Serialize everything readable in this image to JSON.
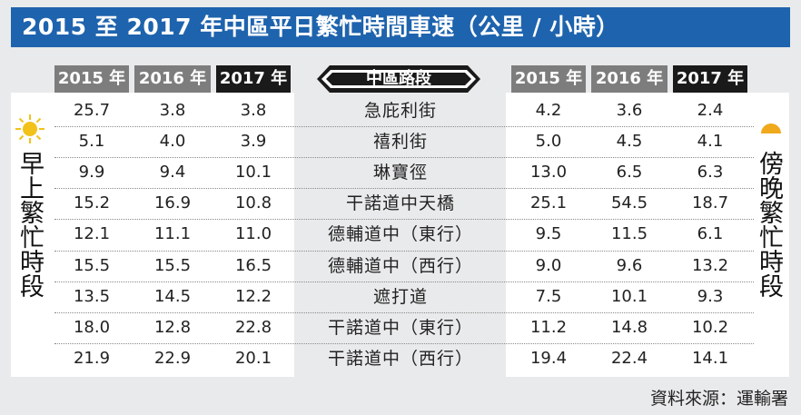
{
  "title": "2015 至 2017 年中區平日繁忙時間車速（公里 / 小時）",
  "source": "資料來源：運輸署",
  "morning_label": "早上繁忙時段",
  "evening_label": "傍晚繁忙時段",
  "chart_data": {
    "type": "table",
    "title": "2015 至 2017 年中區平日繁忙時間車速（公里 / 小時）",
    "road_header": "中區路段",
    "year_headers": [
      "2015 年",
      "2016 年",
      "2017 年"
    ],
    "groups": [
      "早上繁忙時段",
      "傍晚繁忙時段"
    ],
    "rows": [
      {
        "road": "急庇利街",
        "morning": [
          "25.7",
          "3.8",
          "3.8"
        ],
        "evening": [
          "4.2",
          "3.6",
          "2.4"
        ]
      },
      {
        "road": "禧利街",
        "morning": [
          "5.1",
          "4.0",
          "3.9"
        ],
        "evening": [
          "5.0",
          "4.5",
          "4.1"
        ]
      },
      {
        "road": "琳寶徑",
        "morning": [
          "9.9",
          "9.4",
          "10.1"
        ],
        "evening": [
          "13.0",
          "6.5",
          "6.3"
        ]
      },
      {
        "road": "干諾道中天橋",
        "morning": [
          "15.2",
          "16.9",
          "10.8"
        ],
        "evening": [
          "25.1",
          "54.5",
          "18.7"
        ]
      },
      {
        "road": "德輔道中（東行）",
        "morning": [
          "12.1",
          "11.1",
          "11.0"
        ],
        "evening": [
          "9.5",
          "11.5",
          "6.1"
        ]
      },
      {
        "road": "德輔道中（西行）",
        "morning": [
          "15.5",
          "15.5",
          "16.5"
        ],
        "evening": [
          "9.0",
          "9.6",
          "13.2"
        ]
      },
      {
        "road": "遮打道",
        "morning": [
          "13.5",
          "14.5",
          "12.2"
        ],
        "evening": [
          "7.5",
          "10.1",
          "9.3"
        ]
      },
      {
        "road": "干諾道中（東行）",
        "morning": [
          "18.0",
          "12.8",
          "22.8"
        ],
        "evening": [
          "11.2",
          "14.8",
          "10.2"
        ]
      },
      {
        "road": "干諾道中（西行）",
        "morning": [
          "21.9",
          "22.9",
          "20.1"
        ],
        "evening": [
          "19.4",
          "22.4",
          "14.1"
        ]
      }
    ],
    "colors": {
      "title_bg": "#1e63ad",
      "header_past": "#7d7d7d",
      "header_current": "#1a1a1a",
      "sun": "#f2c21a",
      "moon": "#f0a81c"
    }
  }
}
